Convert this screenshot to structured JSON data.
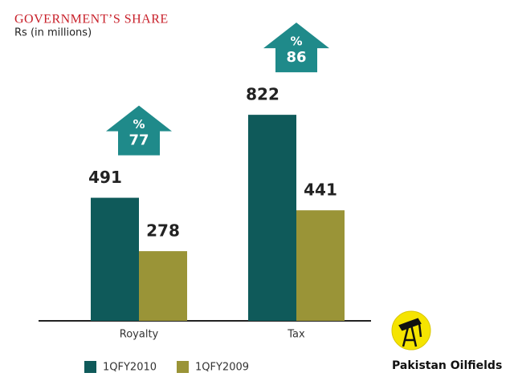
{
  "chart_data": {
    "type": "bar",
    "title": "GOVERNMENT’S SHARE",
    "subtitle": "Rs (in millions)",
    "categories": [
      "Royalty",
      "Tax"
    ],
    "series": [
      {
        "name": "1QFY2010",
        "color": "#0f5a5a",
        "values": [
          491,
          822
        ]
      },
      {
        "name": "1QFY2009",
        "color": "#9a9437",
        "values": [
          278,
          441
        ]
      }
    ],
    "annotations": [
      {
        "label": "%",
        "value": 77
      },
      {
        "label": "%",
        "value": 86
      }
    ],
    "grid": false
  },
  "logo": {
    "text": "Pakistan Oilfields"
  }
}
